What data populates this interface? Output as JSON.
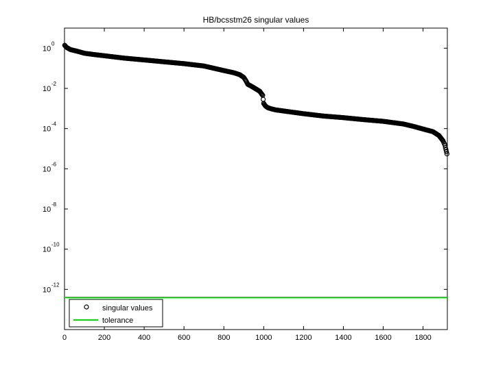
{
  "chart_data": {
    "type": "scatter",
    "title": "HB/bcsstm26 singular values",
    "xlabel": "",
    "ylabel": "",
    "x_scale": "linear",
    "y_scale": "log",
    "xlim": [
      0,
      1922
    ],
    "ylim": [
      1e-14,
      10
    ],
    "x_ticks": [
      0,
      200,
      400,
      600,
      800,
      1000,
      1200,
      1400,
      1600,
      1800
    ],
    "x_tick_labels": [
      "0",
      "200",
      "400",
      "600",
      "800",
      "1000",
      "1200",
      "1400",
      "1600",
      "1800"
    ],
    "y_ticks": [
      1e-12,
      1e-10,
      1e-08,
      1e-06,
      0.0001,
      0.01,
      1
    ],
    "y_tick_labels": [
      {
        "base": "10",
        "exp": "-12"
      },
      {
        "base": "10",
        "exp": "-10"
      },
      {
        "base": "10",
        "exp": "-8"
      },
      {
        "base": "10",
        "exp": "-6"
      },
      {
        "base": "10",
        "exp": "-4"
      },
      {
        "base": "10",
        "exp": "-2"
      },
      {
        "base": "10",
        "exp": "0"
      }
    ],
    "grid": false,
    "legend_position": "bottom-left",
    "series": [
      {
        "name": "singular values",
        "marker": "open-circle",
        "color": "#000000",
        "x": [
          1,
          10,
          30,
          60,
          100,
          150,
          200,
          300,
          400,
          500,
          600,
          700,
          750,
          800,
          850,
          880,
          900,
          910,
          920,
          940,
          960,
          980,
          995,
          1000,
          1005,
          1010,
          1020,
          1040,
          1060,
          1100,
          1200,
          1300,
          1400,
          1500,
          1600,
          1700,
          1750,
          1800,
          1850,
          1880,
          1900,
          1910,
          1915,
          1920
        ],
        "y": [
          1.4,
          1.1,
          0.85,
          0.72,
          0.56,
          0.48,
          0.42,
          0.32,
          0.26,
          0.21,
          0.17,
          0.13,
          0.1,
          0.077,
          0.06,
          0.048,
          0.035,
          0.025,
          0.016,
          0.0125,
          0.0095,
          0.0072,
          0.0045,
          0.0018,
          0.0015,
          0.0013,
          0.0011,
          0.00095,
          0.00085,
          0.00075,
          0.00055,
          0.00042,
          0.00035,
          0.00028,
          0.00023,
          0.00017,
          0.00013,
          9.5e-05,
          7e-05,
          4.5e-05,
          2.5e-05,
          1.5e-05,
          9e-06,
          5.5e-06
        ]
      },
      {
        "name": "tolerance",
        "marker": "line",
        "color": "#00e000",
        "x": [
          0,
          1922
        ],
        "y": [
          4e-13,
          4e-13
        ]
      }
    ]
  }
}
